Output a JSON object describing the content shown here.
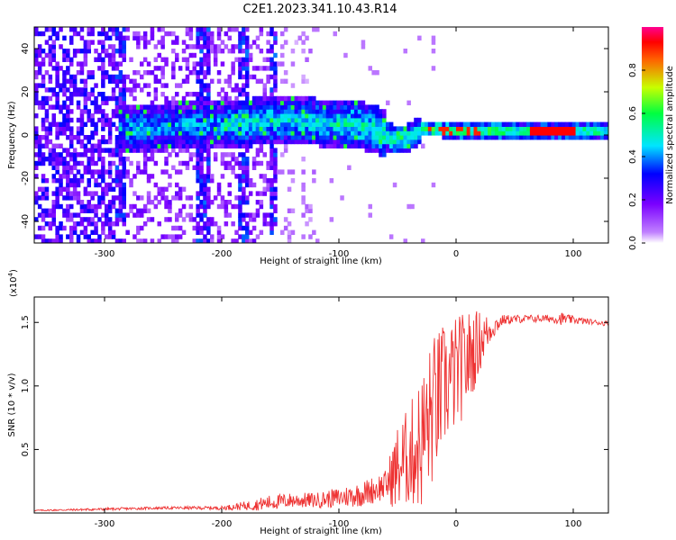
{
  "title": "C2E1.2023.341.10.43.R14",
  "chart_data": [
    {
      "type": "heatmap",
      "xlabel": "Height of straight line (km)",
      "ylabel": "Frequency (Hz)",
      "xlim": [
        -360,
        130
      ],
      "ylim": [
        -50,
        50
      ],
      "xticks": [
        -300,
        -200,
        -100,
        0,
        100
      ],
      "yticks": [
        -40,
        -20,
        0,
        20,
        40
      ],
      "colorbar": {
        "label": "Normalized spectral amplitude",
        "range": [
          0.0,
          1.0
        ],
        "ticks": [
          0.0,
          0.2,
          0.4,
          0.6,
          0.8
        ],
        "colors": [
          "#ffffff",
          "#7a00ff",
          "#0000ff",
          "#00e5ff",
          "#00ff40",
          "#c8ff00",
          "#ff0000",
          "#ff0090"
        ]
      },
      "ridge": [
        {
          "x": -285,
          "f": 2
        },
        {
          "x": -250,
          "f": 3
        },
        {
          "x": -200,
          "f": 4
        },
        {
          "x": -150,
          "f": 6
        },
        {
          "x": -120,
          "f": 5
        },
        {
          "x": -90,
          "f": 4
        },
        {
          "x": -70,
          "f": 2
        },
        {
          "x": -55,
          "f": -3
        },
        {
          "x": -45,
          "f": -3
        },
        {
          "x": -30,
          "f": 2
        },
        {
          "x": 0,
          "f": 1
        },
        {
          "x": 50,
          "f": 1
        },
        {
          "x": 80,
          "f": 1
        },
        {
          "x": 130,
          "f": 1
        }
      ]
    },
    {
      "type": "line",
      "xlabel": "Height of straight line (km)",
      "ylabel": "SNR (10 * v/v)",
      "y_multiplier": "(x10",
      "y_multiplier_exp": "4",
      "xlim": [
        -360,
        130
      ],
      "ylim": [
        0,
        1.7
      ],
      "xticks": [
        -300,
        -200,
        -100,
        0,
        100
      ],
      "yticks": [
        0.5,
        1.0,
        1.5
      ],
      "line_color": "#ee3333",
      "series": [
        {
          "x": [
            -360,
            -300,
            -250,
            -200,
            -175,
            -160,
            -140,
            -120,
            -100,
            -80,
            -60,
            -50,
            -40,
            -30,
            -20,
            -10,
            0,
            10,
            20,
            30,
            40,
            60,
            80,
            90,
            100,
            120,
            130
          ],
          "y": [
            0.02,
            0.03,
            0.04,
            0.04,
            0.06,
            0.08,
            0.1,
            0.1,
            0.12,
            0.15,
            0.22,
            0.35,
            0.45,
            0.55,
            0.8,
            1.0,
            1.1,
            1.2,
            1.35,
            1.45,
            1.52,
            1.53,
            1.53,
            1.53,
            1.52,
            1.5,
            1.49
          ],
          "spread": [
            0.005,
            0.01,
            0.01,
            0.015,
            0.04,
            0.06,
            0.06,
            0.06,
            0.08,
            0.1,
            0.12,
            0.35,
            0.4,
            0.55,
            0.6,
            0.5,
            0.45,
            0.4,
            0.25,
            0.1,
            0.04,
            0.03,
            0.03,
            0.05,
            0.03,
            0.02,
            0.02
          ]
        }
      ]
    }
  ]
}
